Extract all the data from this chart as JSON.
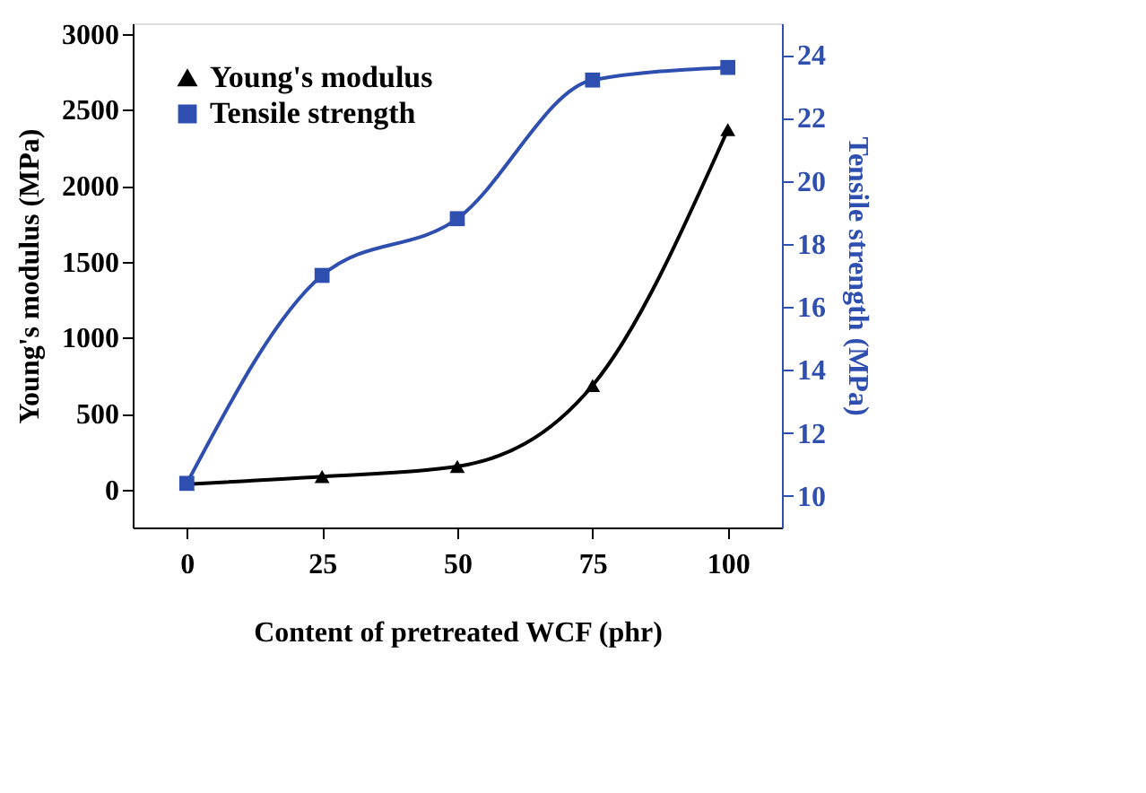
{
  "chart_data": {
    "type": "line",
    "xlabel": "Content of pretreated WCF (phr)",
    "ylabel": "Young's modulus (MPa)",
    "y2label": "Tensile strength (MPa)",
    "x": [
      0,
      25,
      50,
      75,
      100
    ],
    "xlim": [
      -10,
      110
    ],
    "xticks": [
      0,
      25,
      50,
      75,
      100
    ],
    "ylim": [
      -250,
      3070
    ],
    "yticks": [
      0,
      500,
      1000,
      1500,
      2000,
      2500,
      3000
    ],
    "y2lim": [
      9,
      25
    ],
    "y2ticks": [
      10,
      12,
      14,
      16,
      18,
      20,
      22,
      24
    ],
    "legend": "top left",
    "grid": false,
    "series": [
      {
        "name": "Young's modulus",
        "color": "#000000",
        "marker": "triangle",
        "values": [
          35,
          85,
          152,
          685,
          2370
        ]
      },
      {
        "name": "Tensile strength",
        "color": "#2f4fb0",
        "marker": "square",
        "axis": "y2",
        "values": [
          10.4,
          17.0,
          18.8,
          23.2,
          23.6
        ]
      }
    ]
  }
}
